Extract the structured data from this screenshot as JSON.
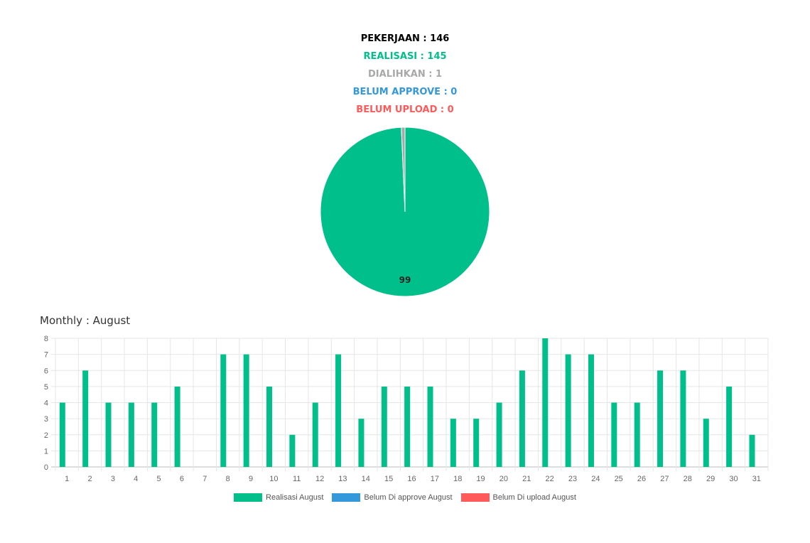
{
  "stats": {
    "pekerjaan": "PEKERJAAN : 146",
    "realisasi": "REALISASI : 145",
    "dialihkan": "DIALIHKAN : 1",
    "belum_approve": "BELUM APPROVE : 0",
    "belum_upload": "BELUM UPLOAD : 0"
  },
  "colors": {
    "realisasi": "#00bf8a",
    "dialihkan": "#a8a8a8",
    "belum_approve": "#3498db",
    "belum_upload": "#ff5a5a",
    "pekerjaan": "#000000"
  },
  "monthly_title": "Monthly : August",
  "chart_data": [
    {
      "type": "pie",
      "slices": [
        {
          "value": 145,
          "color": "#00bf8a"
        },
        {
          "value": 1,
          "color": "#a8a8a8"
        }
      ],
      "data_labels": [
        "99"
      ]
    },
    {
      "type": "bar",
      "categories": [
        "1",
        "2",
        "3",
        "4",
        "5",
        "6",
        "7",
        "8",
        "9",
        "10",
        "11",
        "12",
        "13",
        "14",
        "15",
        "16",
        "17",
        "18",
        "19",
        "20",
        "21",
        "22",
        "23",
        "24",
        "25",
        "26",
        "27",
        "28",
        "29",
        "30",
        "31"
      ],
      "series": [
        {
          "name": "Realisasi August",
          "color": "#00bf8a",
          "values": [
            4,
            6,
            4,
            4,
            4,
            5,
            0,
            7,
            7,
            5,
            2,
            4,
            7,
            3,
            5,
            5,
            5,
            3,
            3,
            4,
            6,
            8,
            7,
            7,
            4,
            4,
            6,
            6,
            3,
            5,
            2
          ]
        },
        {
          "name": "Belum Di approve August",
          "color": "#3498db",
          "values": [
            0,
            0,
            0,
            0,
            0,
            0,
            0,
            0,
            0,
            0,
            0,
            0,
            0,
            0,
            0,
            0,
            0,
            0,
            0,
            0,
            0,
            0,
            0,
            0,
            0,
            0,
            0,
            0,
            0,
            0,
            0
          ]
        },
        {
          "name": "Belum Di upload August",
          "color": "#ff5a5a",
          "values": [
            0,
            0,
            0,
            0,
            0,
            0,
            0,
            0,
            0,
            0,
            0,
            0,
            0,
            0,
            0,
            0,
            0,
            0,
            0,
            0,
            0,
            0,
            0,
            0,
            0,
            0,
            0,
            0,
            0,
            0,
            0
          ]
        }
      ],
      "ylim": [
        0,
        8
      ],
      "yticks": [
        0,
        1,
        2,
        3,
        4,
        5,
        6,
        7,
        8
      ],
      "grid": true,
      "legend_position": "bottom"
    }
  ]
}
